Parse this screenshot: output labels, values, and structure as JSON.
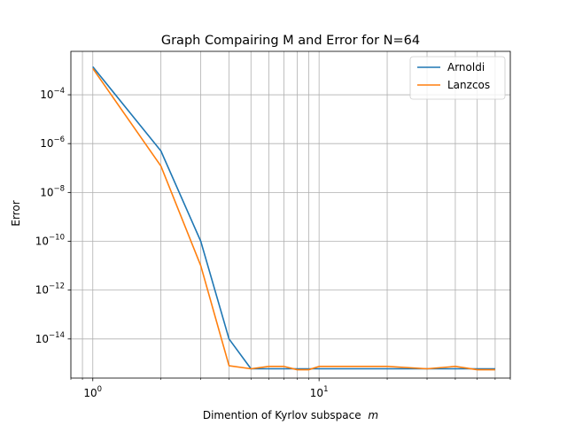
{
  "chart_data": {
    "type": "line",
    "title": "Graph Compairing M and Error for N=64",
    "xlabel": "Dimention of Kyrlov subspace",
    "xlabel_math": "m",
    "ylabel": "Error",
    "xscale": "log",
    "yscale": "log",
    "xlim": [
      0.8,
      70
    ],
    "ylim": [
      2.5e-16,
      0.006
    ],
    "grid": true,
    "grid_which": "both",
    "legend_position": "upper right",
    "x_ticks": [
      {
        "value": 1,
        "label_base": "10",
        "label_exp": "0"
      },
      {
        "value": 10,
        "label_base": "10",
        "label_exp": "1"
      }
    ],
    "y_ticks": [
      {
        "value": 0.0001,
        "label_base": "10",
        "label_exp": "−4"
      },
      {
        "value": 1e-06,
        "label_base": "10",
        "label_exp": "−6"
      },
      {
        "value": 1e-08,
        "label_base": "10",
        "label_exp": "−8"
      },
      {
        "value": 1e-10,
        "label_base": "10",
        "label_exp": "−10"
      },
      {
        "value": 1e-12,
        "label_base": "10",
        "label_exp": "−12"
      },
      {
        "value": 1e-14,
        "label_base": "10",
        "label_exp": "−14"
      }
    ],
    "series": [
      {
        "name": "Arnoldi",
        "color": "#1f77b4",
        "x": [
          1,
          2,
          3,
          4,
          5,
          6,
          7,
          8,
          9,
          10,
          20,
          30,
          40,
          50,
          60
        ],
        "y": [
          0.0014,
          5e-07,
          1e-10,
          1e-14,
          6e-16,
          6e-16,
          6e-16,
          6e-16,
          6e-16,
          6e-16,
          6e-16,
          6e-16,
          6e-16,
          6e-16,
          6e-16
        ]
      },
      {
        "name": "Lanzcos",
        "color": "#ff7f0e",
        "x": [
          1,
          2,
          3,
          4,
          5,
          6,
          7,
          8,
          9,
          10,
          20,
          30,
          40,
          50,
          60
        ],
        "y": [
          0.0012,
          1.2e-07,
          1e-11,
          8e-16,
          6e-16,
          7.5e-16,
          7.5e-16,
          5.5e-16,
          5.5e-16,
          7.5e-16,
          7.5e-16,
          6e-16,
          7.5e-16,
          5.5e-16,
          5.5e-16
        ]
      }
    ]
  }
}
